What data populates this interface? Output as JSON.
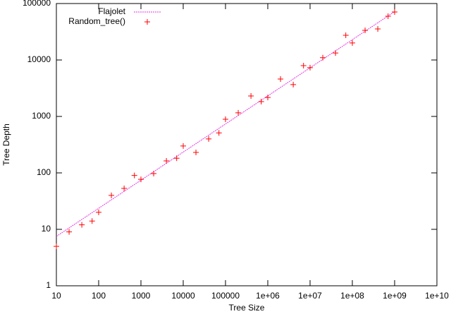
{
  "chart_data": {
    "type": "scatter",
    "x_label": "Tree Size",
    "y_label": "Tree Depth",
    "xscale": "log",
    "yscale": "log",
    "legend": "top-left",
    "xlim": [
      10,
      10000000000
    ],
    "ylim": [
      1,
      100000
    ],
    "xticks": [
      10,
      100,
      1000,
      10000,
      100000,
      {
        "value": 1000000,
        "label": "1e+06"
      },
      {
        "value": 10000000,
        "label": "1e+07"
      },
      {
        "value": 100000000,
        "label": "1e+08"
      },
      {
        "value": 1000000000,
        "label": "1e+09"
      },
      {
        "value": 10000000000,
        "label": "1e+10"
      }
    ],
    "yticks": [
      1,
      10,
      100,
      1000,
      10000,
      100000
    ],
    "series": [
      {
        "name": "Flajolet",
        "type": "line",
        "color": "#e633e6",
        "x": [
          10,
          1000000000
        ],
        "values": [
          7.5,
          72000
        ]
      },
      {
        "name": "Random_tree()",
        "type": "points",
        "color": "#ff0000",
        "x": [
          10,
          20,
          40,
          70,
          100,
          200,
          400,
          700,
          1000,
          2000,
          4000,
          7000,
          10000,
          20000,
          40000,
          70000,
          100000,
          200000,
          400000,
          700000,
          1000000,
          2000000,
          4000000,
          7000000,
          10000000,
          20000000,
          40000000,
          70000000,
          100000000,
          200000000,
          400000000,
          700000000,
          1000000000
        ],
        "values": [
          5,
          9,
          12,
          14,
          20,
          40,
          53,
          90,
          77,
          97,
          163,
          182,
          300,
          230,
          400,
          510,
          890,
          1160,
          2300,
          1830,
          2170,
          4600,
          3670,
          7940,
          7300,
          11000,
          13300,
          27400,
          20000,
          33500,
          35500,
          59600,
          70800
        ]
      }
    ]
  }
}
